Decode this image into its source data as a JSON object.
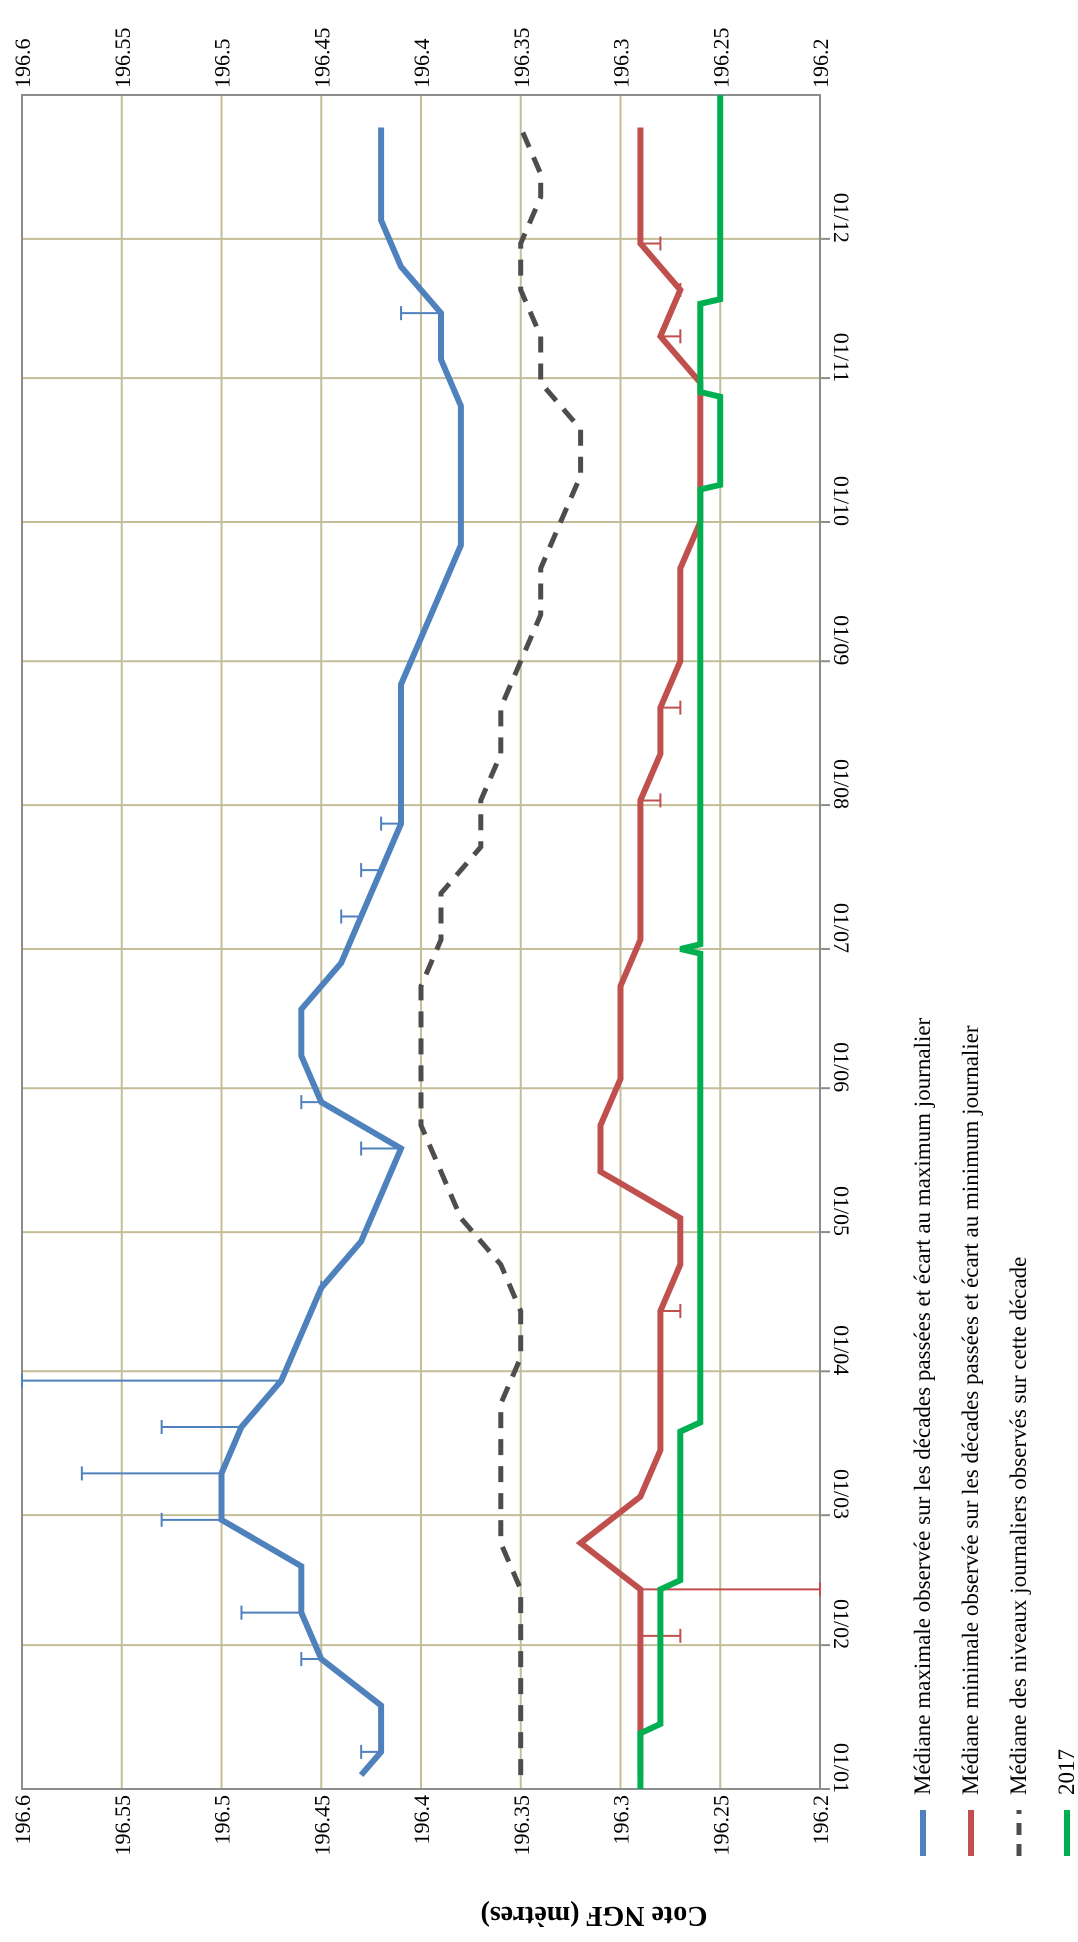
{
  "chart_data": {
    "type": "line",
    "ylabel": "Cote NGF (mètres)",
    "xlabel": "",
    "title": "",
    "ylim": [
      196.2,
      196.6
    ],
    "y_ticks": [
      "196.2",
      "196.25",
      "196.3",
      "196.35",
      "196.4",
      "196.45",
      "196.5",
      "196.55",
      "196.6"
    ],
    "x_tick_labels": [
      "01/01",
      "01/02",
      "01/03",
      "01/04",
      "01/05",
      "01/06",
      "01/07",
      "01/08",
      "01/09",
      "01/10",
      "01/11",
      "01/12"
    ],
    "x_tick_days": [
      0,
      31,
      59,
      90,
      120,
      151,
      181,
      212,
      243,
      273,
      304,
      334
    ],
    "x_range_days": [
      0,
      365
    ],
    "grid": true,
    "legend_position": "bottom",
    "series": [
      {
        "name": "Médiane maximale observée sur les décades passées et écart au maximum journalier",
        "color": "#4F81BD",
        "style": "solid",
        "points": [
          [
            3,
            196.43
          ],
          [
            8,
            196.42
          ],
          [
            18,
            196.42
          ],
          [
            28,
            196.45
          ],
          [
            38,
            196.46
          ],
          [
            48,
            196.46
          ],
          [
            58,
            196.5
          ],
          [
            68,
            196.5
          ],
          [
            78,
            196.49
          ],
          [
            88,
            196.47
          ],
          [
            98,
            196.46
          ],
          [
            108,
            196.45
          ],
          [
            118,
            196.43
          ],
          [
            128,
            196.42
          ],
          [
            138,
            196.41
          ],
          [
            148,
            196.45
          ],
          [
            158,
            196.46
          ],
          [
            168,
            196.46
          ],
          [
            178,
            196.44
          ],
          [
            188,
            196.43
          ],
          [
            198,
            196.42
          ],
          [
            208,
            196.41
          ],
          [
            218,
            196.41
          ],
          [
            228,
            196.41
          ],
          [
            238,
            196.41
          ],
          [
            248,
            196.4
          ],
          [
            258,
            196.39
          ],
          [
            268,
            196.38
          ],
          [
            278,
            196.38
          ],
          [
            288,
            196.38
          ],
          [
            298,
            196.38
          ],
          [
            308,
            196.39
          ],
          [
            318,
            196.39
          ],
          [
            328,
            196.41
          ],
          [
            338,
            196.42
          ],
          [
            348,
            196.42
          ],
          [
            358,
            196.42
          ]
        ],
        "error_bars": [
          [
            8,
            196.42,
            196.43
          ],
          [
            28,
            196.45,
            196.46
          ],
          [
            38,
            196.46,
            196.49
          ],
          [
            58,
            196.5,
            196.53
          ],
          [
            68,
            196.5,
            196.57
          ],
          [
            78,
            196.49,
            196.53
          ],
          [
            88,
            196.47,
            196.6
          ],
          [
            108,
            196.45,
            196.45
          ],
          [
            138,
            196.41,
            196.43
          ],
          [
            148,
            196.45,
            196.46
          ],
          [
            188,
            196.43,
            196.44
          ],
          [
            198,
            196.42,
            196.43
          ],
          [
            208,
            196.41,
            196.42
          ],
          [
            318,
            196.39,
            196.41
          ]
        ]
      },
      {
        "name": "Médiane minimale observée sur les décades passées et écart au minimum journalier",
        "color": "#C0504D",
        "style": "solid",
        "points": [
          [
            3,
            196.29
          ],
          [
            13,
            196.29
          ],
          [
            23,
            196.29
          ],
          [
            33,
            196.29
          ],
          [
            43,
            196.29
          ],
          [
            53,
            196.32
          ],
          [
            63,
            196.29
          ],
          [
            73,
            196.28
          ],
          [
            83,
            196.28
          ],
          [
            93,
            196.28
          ],
          [
            103,
            196.28
          ],
          [
            113,
            196.27
          ],
          [
            123,
            196.27
          ],
          [
            133,
            196.31
          ],
          [
            143,
            196.31
          ],
          [
            153,
            196.3
          ],
          [
            163,
            196.3
          ],
          [
            173,
            196.3
          ],
          [
            183,
            196.29
          ],
          [
            193,
            196.29
          ],
          [
            203,
            196.29
          ],
          [
            213,
            196.29
          ],
          [
            223,
            196.28
          ],
          [
            233,
            196.28
          ],
          [
            243,
            196.27
          ],
          [
            253,
            196.27
          ],
          [
            263,
            196.27
          ],
          [
            273,
            196.26
          ],
          [
            283,
            196.26
          ],
          [
            293,
            196.26
          ],
          [
            303,
            196.26
          ],
          [
            313,
            196.28
          ],
          [
            323,
            196.27
          ],
          [
            333,
            196.29
          ],
          [
            343,
            196.29
          ],
          [
            353,
            196.29
          ],
          [
            358,
            196.29
          ]
        ],
        "error_bars": [
          [
            33,
            196.29,
            196.27
          ],
          [
            43,
            196.29,
            196.2
          ],
          [
            103,
            196.28,
            196.27
          ],
          [
            213,
            196.29,
            196.28
          ],
          [
            233,
            196.28,
            196.27
          ],
          [
            313,
            196.28,
            196.27
          ],
          [
            323,
            196.27,
            196.27
          ],
          [
            333,
            196.29,
            196.28
          ]
        ]
      },
      {
        "name": "Médiane des niveaux journaliers observés sur cette décade",
        "color": "#4D4D4D",
        "style": "dashed",
        "points": [
          [
            3,
            196.35
          ],
          [
            33,
            196.35
          ],
          [
            43,
            196.35
          ],
          [
            53,
            196.36
          ],
          [
            63,
            196.36
          ],
          [
            73,
            196.36
          ],
          [
            83,
            196.36
          ],
          [
            93,
            196.35
          ],
          [
            103,
            196.35
          ],
          [
            113,
            196.36
          ],
          [
            123,
            196.38
          ],
          [
            133,
            196.39
          ],
          [
            143,
            196.4
          ],
          [
            153,
            196.4
          ],
          [
            163,
            196.4
          ],
          [
            173,
            196.4
          ],
          [
            183,
            196.39
          ],
          [
            193,
            196.39
          ],
          [
            203,
            196.37
          ],
          [
            213,
            196.37
          ],
          [
            223,
            196.36
          ],
          [
            233,
            196.36
          ],
          [
            243,
            196.35
          ],
          [
            253,
            196.34
          ],
          [
            263,
            196.34
          ],
          [
            273,
            196.33
          ],
          [
            283,
            196.32
          ],
          [
            293,
            196.32
          ],
          [
            303,
            196.34
          ],
          [
            313,
            196.34
          ],
          [
            323,
            196.35
          ],
          [
            333,
            196.35
          ],
          [
            343,
            196.34
          ],
          [
            348,
            196.34
          ],
          [
            358,
            196.35
          ]
        ]
      },
      {
        "name": "2017",
        "color": "#00B050",
        "style": "solid",
        "points": [
          [
            0,
            196.29
          ],
          [
            12,
            196.29
          ],
          [
            14,
            196.28
          ],
          [
            43,
            196.28
          ],
          [
            45,
            196.27
          ],
          [
            63,
            196.27
          ],
          [
            77,
            196.27
          ],
          [
            79,
            196.26
          ],
          [
            88,
            196.26
          ],
          [
            180,
            196.26
          ],
          [
            181,
            196.27
          ],
          [
            182,
            196.26
          ],
          [
            280,
            196.26
          ],
          [
            281,
            196.25
          ],
          [
            300,
            196.25
          ],
          [
            301,
            196.26
          ],
          [
            320,
            196.26
          ],
          [
            321,
            196.25
          ],
          [
            345,
            196.25
          ],
          [
            365,
            196.25
          ]
        ]
      }
    ]
  }
}
